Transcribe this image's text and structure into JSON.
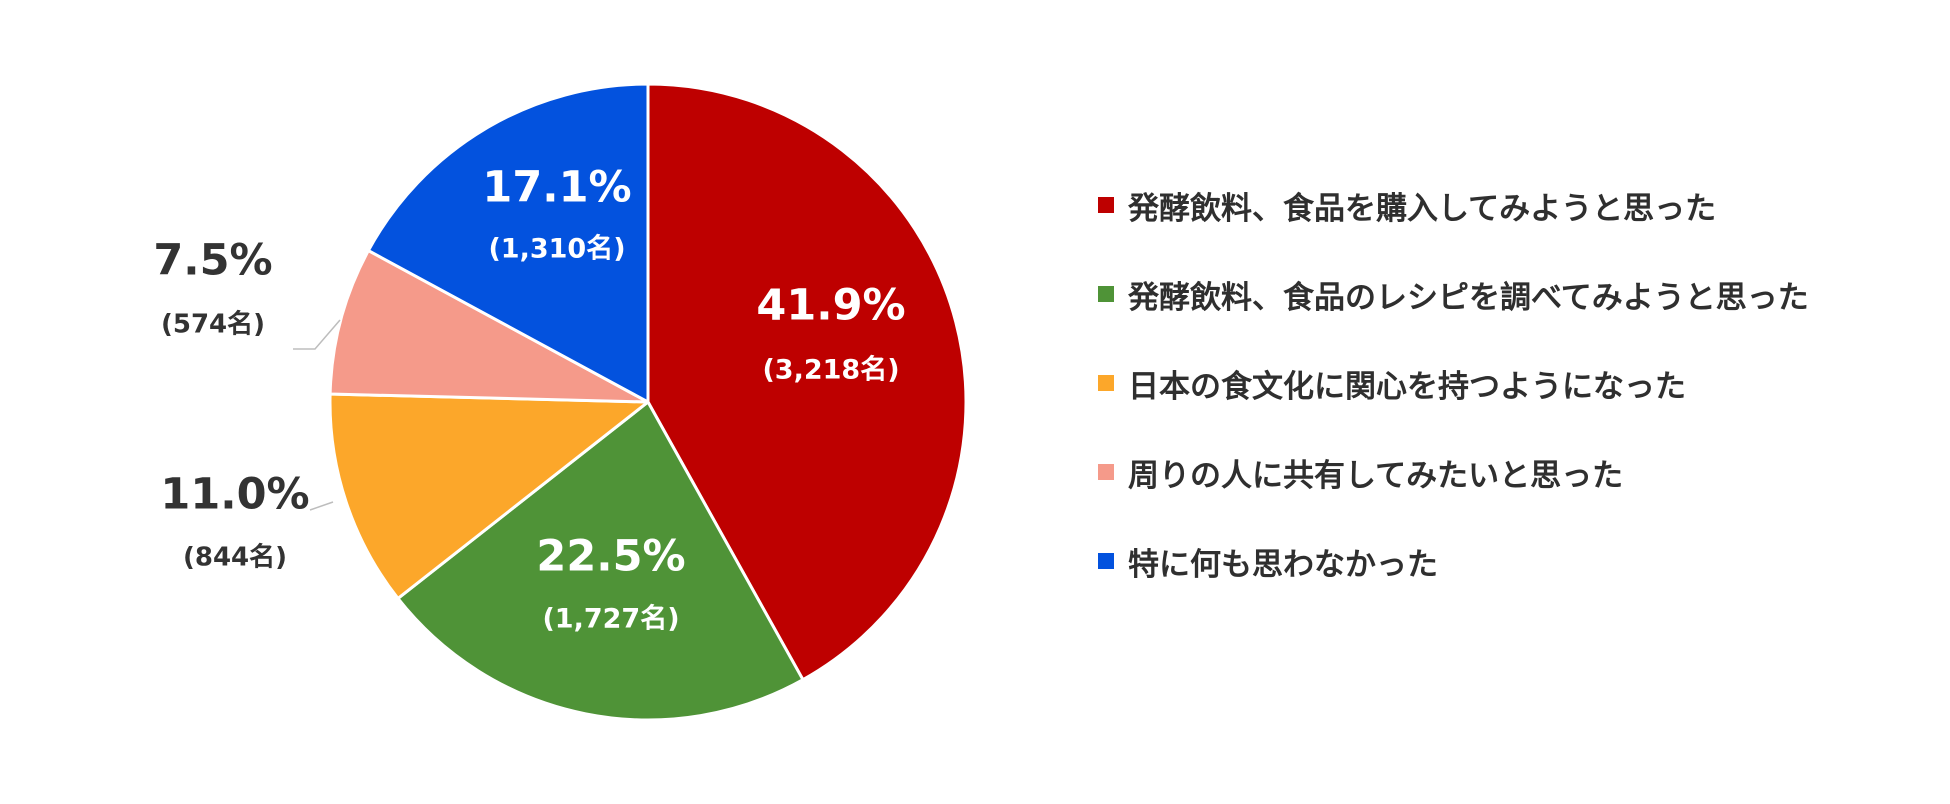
{
  "chart_data": {
    "type": "pie",
    "slices": [
      {
        "label": "発酵飲料、食品を購入してみようと思った",
        "percent_text": "41.9%",
        "count_text": "(3,218名)",
        "value": 41.9,
        "count": 3218,
        "color": "#be0000",
        "label_inside": true
      },
      {
        "label": "発酵飲料、食品のレシピを調べてみようと思った",
        "percent_text": "22.5%",
        "count_text": "(1,727名)",
        "value": 22.5,
        "count": 1727,
        "color": "#4f9337",
        "label_inside": true
      },
      {
        "label": "日本の食文化に関心を持つようになった",
        "percent_text": "11.0%",
        "count_text": "(844名)",
        "value": 11.0,
        "count": 844,
        "color": "#fca72a",
        "label_inside": false
      },
      {
        "label": "周りの人に共有してみたいと思った",
        "percent_text": "7.5%",
        "count_text": "(574名)",
        "value": 7.5,
        "count": 574,
        "color": "#f59a8a",
        "label_inside": false
      },
      {
        "label": "特に何も思わなかった",
        "percent_text": "17.1%",
        "count_text": "(1,310名)",
        "value": 17.1,
        "count": 1310,
        "color": "#0352de",
        "label_inside": true
      }
    ],
    "start_angle_deg": 0,
    "direction": "clockwise",
    "legend_position": "right"
  }
}
